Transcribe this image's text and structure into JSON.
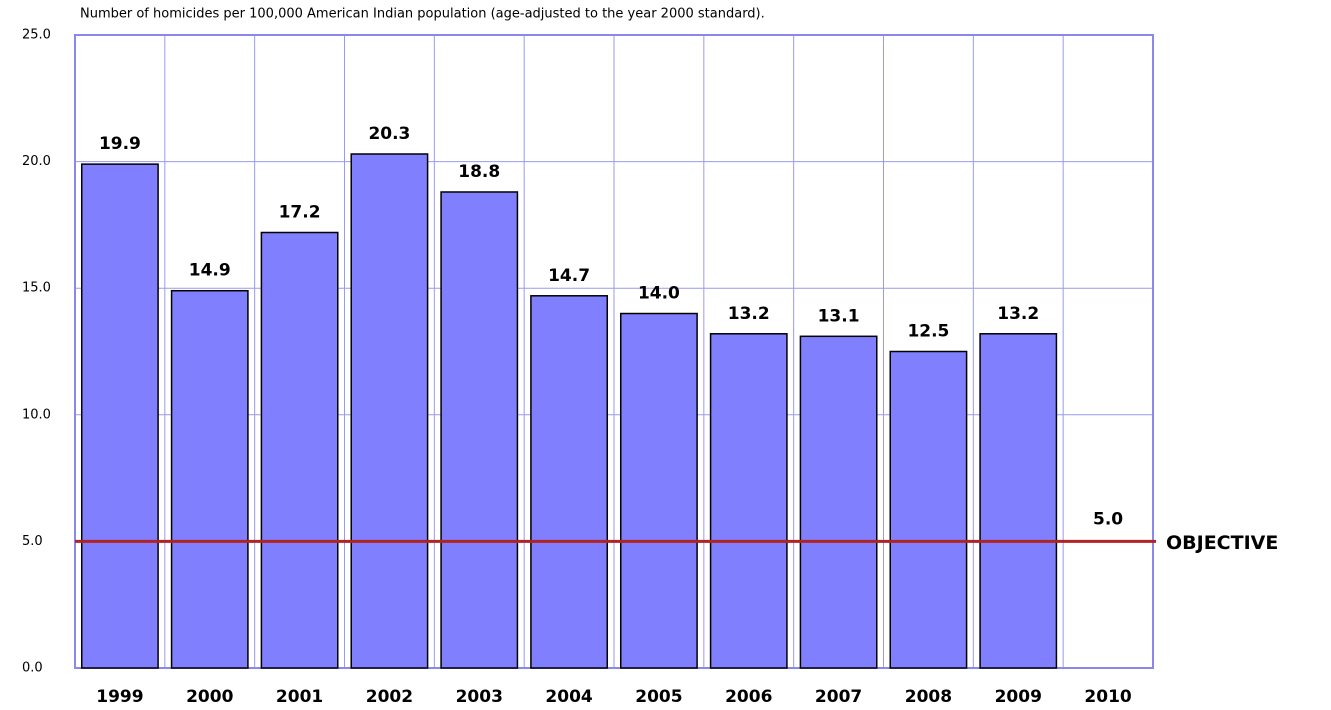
{
  "chart_data": {
    "type": "bar",
    "title": "Number of homicides per 100,000 American Indian population (age-adjusted to the year 2000 standard).",
    "categories": [
      "1999",
      "2000",
      "2001",
      "2002",
      "2003",
      "2004",
      "2005",
      "2006",
      "2007",
      "2008",
      "2009",
      "2010"
    ],
    "values": [
      19.9,
      14.9,
      17.2,
      20.3,
      18.8,
      14.7,
      14.0,
      13.2,
      13.1,
      12.5,
      13.2,
      null
    ],
    "value_labels": [
      "19.9",
      "14.9",
      "17.2",
      "20.3",
      "18.8",
      "14.7",
      "14.0",
      "13.2",
      "13.1",
      "12.5",
      "13.2",
      null
    ],
    "color": "#8080ff",
    "objective": {
      "value": 5.0,
      "value_label": "5.0",
      "label": "OBJECTIVE",
      "color": "#b22222"
    },
    "ylim": [
      0,
      25
    ],
    "yticks": [
      {
        "value": 0,
        "label": "0.0"
      },
      {
        "value": 5,
        "label": "5.0"
      },
      {
        "value": 10,
        "label": "10.0"
      },
      {
        "value": 15,
        "label": "15.0"
      },
      {
        "value": 20,
        "label": "20.0"
      },
      {
        "value": 25,
        "label": "25.0"
      }
    ],
    "grid": true
  }
}
